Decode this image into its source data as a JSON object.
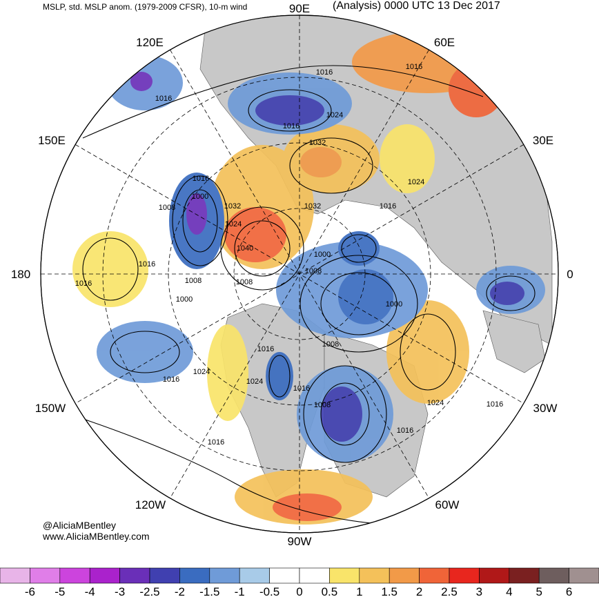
{
  "header": {
    "left": "MSLP, std. MSLP anom. (1979-2009 CFSR), 10-m wind",
    "right": "(Analysis) 0000 UTC 13 Dec 2017"
  },
  "credit": {
    "handle": "@AliciaMBentley",
    "url": "www.AliciaMBentley.com"
  },
  "map": {
    "projection": "north polar stereographic",
    "longitude_labels": [
      {
        "text": "90E",
        "lon": 90
      },
      {
        "text": "60E",
        "lon": 60
      },
      {
        "text": "30E",
        "lon": 30
      },
      {
        "text": "0",
        "lon": 0
      },
      {
        "text": "30W",
        "lon": -30
      },
      {
        "text": "60W",
        "lon": -60
      },
      {
        "text": "90W",
        "lon": -90
      },
      {
        "text": "120W",
        "lon": -120
      },
      {
        "text": "150W",
        "lon": -150
      },
      {
        "text": "180",
        "lon": 180
      },
      {
        "text": "150E",
        "lon": 150
      },
      {
        "text": "120E",
        "lon": 120
      }
    ],
    "isobar_labels": [
      "1016",
      "1024",
      "1016",
      "1032",
      "1024",
      "1016",
      "1016",
      "1000",
      "1008",
      "1032",
      "1032",
      "1016",
      "1024",
      "1040",
      "1016",
      "1016",
      "1000",
      "1008",
      "1008",
      "1016",
      "1008",
      "1000",
      "1000",
      "1008",
      "1016",
      "1024",
      "1016",
      "1024",
      "1016",
      "1008",
      "1016",
      "1024",
      "1016",
      "1016"
    ],
    "colors": {
      "land": "#c8c8c8",
      "ocean": "#ffffff",
      "isobar": "#000000"
    }
  },
  "colorbar": {
    "ticks": [
      "-6",
      "-5",
      "-4",
      "-3",
      "-2.5",
      "-2",
      "-1.5",
      "-1",
      "-0.5",
      "0",
      "0.5",
      "1",
      "1.5",
      "2",
      "2.5",
      "3",
      "4",
      "5",
      "6"
    ],
    "colors": [
      "#e8b4e8",
      "#e07ee8",
      "#cc44dd",
      "#aa22cc",
      "#6a2fb8",
      "#4040b0",
      "#3a6cc0",
      "#6f9bd8",
      "#a8cbe8",
      "#ffffff",
      "#ffffff",
      "#f9e46a",
      "#f4c15a",
      "#f29a48",
      "#f06438",
      "#e8261e",
      "#b01818",
      "#7a2020",
      "#6e5e5e",
      "#a09090"
    ]
  }
}
